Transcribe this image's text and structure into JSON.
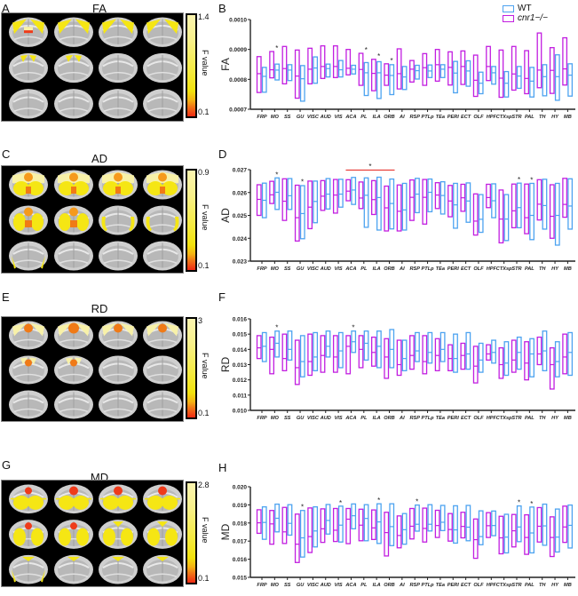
{
  "legend": {
    "wt_label": "WT",
    "ko_label": "cnr1−/−",
    "wt_color": "#4da3f0",
    "ko_color": "#c21ee0"
  },
  "brain_panels": [
    {
      "letter": "A",
      "title": "FA",
      "cbar_max": "1.4",
      "cbar_min": "0.1",
      "cbar_label": "F value"
    },
    {
      "letter": "C",
      "title": "AD",
      "cbar_max": "0.9",
      "cbar_min": "0.1",
      "cbar_label": "F value"
    },
    {
      "letter": "E",
      "title": "RD",
      "cbar_max": "3",
      "cbar_min": "0.1",
      "cbar_label": "F value"
    },
    {
      "letter": "G",
      "title": "MD",
      "cbar_max": "2.8",
      "cbar_min": "0.1",
      "cbar_label": "F value"
    }
  ],
  "chart_data": [
    {
      "panel": "B",
      "type": "floating-bar",
      "title": "",
      "xlabel": "",
      "ylabel": "FA",
      "ylim": [
        0.0007,
        0.001
      ],
      "yticks": [
        "0.0007",
        "0.0008",
        "0.0009",
        "0.0010"
      ],
      "categories": [
        "FRP",
        "MO",
        "SS",
        "GU",
        "VISC",
        "AUD",
        "VIS",
        "ACA",
        "PL",
        "ILA",
        "ORB",
        "AI",
        "RSP",
        "PTLp",
        "TEa",
        "PERI",
        "ECT",
        "OLF",
        "HPF",
        "CTXsp",
        "STR",
        "PAL",
        "TH",
        "HY",
        "MB"
      ],
      "series": [
        {
          "name": "cnr1-/-",
          "min": [
            0.000756,
            0.000805,
            0.000785,
            0.000737,
            0.000785,
            0.000803,
            0.000806,
            0.000815,
            0.00078,
            0.000762,
            0.00078,
            0.000768,
            0.000791,
            0.00078,
            0.000794,
            0.000781,
            0.000783,
            0.000743,
            0.000796,
            0.00074,
            0.000764,
            0.000752,
            0.000772,
            0.000753,
            0.000781
          ],
          "max": [
            0.000876,
            0.000893,
            0.00091,
            0.000898,
            0.000904,
            0.000912,
            0.000912,
            0.0009,
            0.000887,
            0.000867,
            0.000852,
            0.000902,
            0.000863,
            0.000886,
            0.0009,
            0.000892,
            0.000895,
            0.000881,
            0.00091,
            0.000898,
            0.00091,
            0.000896,
            0.000955,
            0.000906,
            0.000939
          ],
          "median": [
            0.000819,
            0.000832,
            0.000836,
            0.000811,
            0.000834,
            0.000843,
            0.000843,
            0.000837,
            0.000833,
            0.00082,
            0.000814,
            0.000819,
            0.000834,
            0.000839,
            0.000849,
            0.00084,
            0.000843,
            0.000797,
            0.000843,
            0.000804,
            0.000818,
            0.000803,
            0.000831,
            0.00083,
            0.000835
          ]
        },
        {
          "name": "WT",
          "min": [
            0.000757,
            0.000798,
            0.000796,
            0.000727,
            0.000787,
            0.000808,
            0.000808,
            0.000818,
            0.000746,
            0.000736,
            0.000749,
            0.000766,
            0.000801,
            0.000806,
            0.000806,
            0.000755,
            0.000777,
            0.000752,
            0.000784,
            0.000741,
            0.00077,
            0.000741,
            0.000745,
            0.00073,
            0.000744
          ],
          "max": [
            0.00084,
            0.000851,
            0.000849,
            0.000846,
            0.000875,
            0.000851,
            0.000863,
            0.000847,
            0.000856,
            0.000859,
            0.000849,
            0.000843,
            0.000847,
            0.000848,
            0.000849,
            0.00086,
            0.000862,
            0.000824,
            0.000843,
            0.000826,
            0.000843,
            0.00084,
            0.000849,
            0.000882,
            0.000852
          ],
          "median": [
            0.00081,
            0.000831,
            0.000831,
            0.000802,
            0.000838,
            0.000836,
            0.000832,
            0.000834,
            0.000822,
            0.000822,
            0.000813,
            0.000808,
            0.000829,
            0.000828,
            0.000834,
            0.000821,
            0.000828,
            0.000787,
            0.000822,
            0.000787,
            0.000811,
            0.000794,
            0.000809,
            0.000809,
            0.000814
          ]
        }
      ],
      "annotations": [
        {
          "category": "MO",
          "text": "*"
        },
        {
          "category": "PL",
          "text": "*"
        },
        {
          "category": "ILA",
          "text": "*"
        },
        {
          "category": "ORB",
          "text": "*"
        }
      ]
    },
    {
      "panel": "D",
      "type": "floating-bar",
      "title": "",
      "xlabel": "",
      "ylabel": "AD",
      "ylim": [
        0.023,
        0.027
      ],
      "yticks": [
        "0.023",
        "0.024",
        "0.025",
        "0.026",
        "0.027"
      ],
      "categories": [
        "FRP",
        "MO",
        "SS",
        "GU",
        "VISC",
        "AUD",
        "VIS",
        "ACA",
        "PL",
        "ILA",
        "ORB",
        "AI",
        "RSP",
        "PTLp",
        "TEa",
        "PERI",
        "ECT",
        "OLF",
        "HPF",
        "CTXsp",
        "STR",
        "PAL",
        "TH",
        "HY",
        "MB"
      ],
      "series": [
        {
          "name": "cnr1-/-",
          "min": [
            0.025,
            0.02552,
            0.02478,
            0.02388,
            0.02442,
            0.02522,
            0.0251,
            0.02564,
            0.0253,
            0.02504,
            0.02432,
            0.02432,
            0.02478,
            0.02462,
            0.0253,
            0.02494,
            0.02518,
            0.02414,
            0.02534,
            0.0238,
            0.02446,
            0.0242,
            0.0248,
            0.024,
            0.02492
          ],
          "max": [
            0.02634,
            0.02649,
            0.0266,
            0.02632,
            0.0265,
            0.02652,
            0.02657,
            0.02656,
            0.02646,
            0.02652,
            0.02628,
            0.02633,
            0.02655,
            0.02657,
            0.02643,
            0.02631,
            0.02636,
            0.02594,
            0.02636,
            0.02611,
            0.02637,
            0.02637,
            0.02656,
            0.02634,
            0.02662
          ],
          "median": [
            0.0257,
            0.0259,
            0.02562,
            0.0249,
            0.02536,
            0.02584,
            0.02589,
            0.02606,
            0.02576,
            0.02569,
            0.02533,
            0.02518,
            0.02579,
            0.02579,
            0.02589,
            0.02563,
            0.02577,
            0.02475,
            0.02578,
            0.02484,
            0.0252,
            0.0249,
            0.02549,
            0.02496,
            0.02548
          ]
        },
        {
          "name": "WT",
          "min": [
            0.0249,
            0.02526,
            0.02526,
            0.02398,
            0.02468,
            0.02528,
            0.02536,
            0.02548,
            0.02448,
            0.02436,
            0.02441,
            0.02436,
            0.02512,
            0.02516,
            0.02506,
            0.02444,
            0.0247,
            0.02426,
            0.0249,
            0.0239,
            0.02446,
            0.02394,
            0.0244,
            0.0237,
            0.0244
          ],
          "max": [
            0.02641,
            0.02664,
            0.02661,
            0.0263,
            0.0265,
            0.02661,
            0.02658,
            0.02666,
            0.02664,
            0.02667,
            0.02659,
            0.0264,
            0.02662,
            0.02659,
            0.02647,
            0.0264,
            0.02642,
            0.02591,
            0.02638,
            0.02591,
            0.02641,
            0.0264,
            0.02658,
            0.0264,
            0.0266
          ],
          "median": [
            0.02566,
            0.02601,
            0.02586,
            0.02508,
            0.02561,
            0.02593,
            0.02593,
            0.02611,
            0.02588,
            0.02578,
            0.02552,
            0.02524,
            0.02593,
            0.02601,
            0.02587,
            0.02546,
            0.02563,
            0.02483,
            0.02564,
            0.02484,
            0.02534,
            0.025,
            0.02543,
            0.025,
            0.02541
          ]
        }
      ],
      "annotations": [
        {
          "category": "MO",
          "text": "*"
        },
        {
          "category": "GU",
          "text": "*"
        },
        {
          "category": "ACA-ORB",
          "text": "*",
          "bracket": true,
          "bracket_color": "#e8413c"
        },
        {
          "category": "STR",
          "text": "*"
        },
        {
          "category": "PAL",
          "text": "*"
        }
      ]
    },
    {
      "panel": "F",
      "type": "floating-bar",
      "title": "",
      "xlabel": "",
      "ylabel": "RD",
      "ylim": [
        0.01,
        0.016
      ],
      "yticks": [
        "0.010",
        "0.011",
        "0.012",
        "0.013",
        "0.014",
        "0.015",
        "0.016"
      ],
      "categories": [
        "FRP",
        "MO",
        "SS",
        "GU",
        "VISC",
        "AUD",
        "VIS",
        "ACA",
        "PL",
        "ILA",
        "ORB",
        "AI",
        "RSP",
        "PTLp",
        "TEa",
        "PERI",
        "ECT",
        "OLF",
        "HPF",
        "CTXsp",
        "STR",
        "PAL",
        "TH",
        "HY",
        "MB"
      ],
      "series": [
        {
          "name": "cnr1-/-",
          "min": [
            0.0134,
            0.0124,
            0.0126,
            0.0117,
            0.0123,
            0.0125,
            0.0125,
            0.0124,
            0.0128,
            0.0129,
            0.0121,
            0.0123,
            0.0127,
            0.0124,
            0.0126,
            0.0126,
            0.0127,
            0.0118,
            0.0133,
            0.0121,
            0.0125,
            0.012,
            0.013,
            0.0114,
            0.0124
          ],
          "max": [
            0.0149,
            0.0148,
            0.015,
            0.0146,
            0.015,
            0.0149,
            0.0149,
            0.0149,
            0.0149,
            0.0148,
            0.0147,
            0.0146,
            0.0149,
            0.0149,
            0.0147,
            0.0143,
            0.0144,
            0.0142,
            0.0143,
            0.0141,
            0.0146,
            0.0145,
            0.0148,
            0.0141,
            0.015
          ],
          "median": [
            0.0141,
            0.014,
            0.0134,
            0.0128,
            0.0132,
            0.0136,
            0.0135,
            0.0142,
            0.014,
            0.0138,
            0.0135,
            0.013,
            0.0136,
            0.0132,
            0.0136,
            0.0134,
            0.0136,
            0.0129,
            0.0137,
            0.013,
            0.0133,
            0.0131,
            0.0137,
            0.013,
            0.0135
          ]
        },
        {
          "name": "WT",
          "min": [
            0.0132,
            0.0135,
            0.0133,
            0.0122,
            0.0126,
            0.0135,
            0.0128,
            0.0138,
            0.0133,
            0.0128,
            0.0128,
            0.0126,
            0.0132,
            0.0131,
            0.0132,
            0.0125,
            0.0127,
            0.0125,
            0.0131,
            0.0123,
            0.0127,
            0.0122,
            0.0126,
            0.0122,
            0.0123
          ],
          "max": [
            0.0151,
            0.0152,
            0.0152,
            0.0149,
            0.0151,
            0.0152,
            0.0151,
            0.0152,
            0.0152,
            0.0152,
            0.0153,
            0.0146,
            0.0151,
            0.0151,
            0.0151,
            0.015,
            0.0151,
            0.0144,
            0.0146,
            0.0145,
            0.0148,
            0.0147,
            0.0152,
            0.0145,
            0.0151
          ],
          "median": [
            0.0142,
            0.0144,
            0.014,
            0.0132,
            0.0135,
            0.0142,
            0.0139,
            0.0145,
            0.0144,
            0.0142,
            0.014,
            0.0134,
            0.0139,
            0.0138,
            0.014,
            0.0134,
            0.0137,
            0.0133,
            0.0138,
            0.0131,
            0.0138,
            0.0137,
            0.0139,
            0.0132,
            0.0138
          ]
        }
      ],
      "annotations": [
        {
          "category": "MO",
          "text": "*"
        },
        {
          "category": "ACA",
          "text": "*"
        }
      ]
    },
    {
      "panel": "H",
      "type": "floating-bar",
      "title": "",
      "xlabel": "",
      "ylabel": "MD",
      "ylim": [
        0.015,
        0.02
      ],
      "yticks": [
        "0.015",
        "0.016",
        "0.017",
        "0.018",
        "0.019",
        "0.020"
      ],
      "categories": [
        "FRP",
        "MO",
        "SS",
        "GU",
        "VISC",
        "AUD",
        "VIS",
        "ACA",
        "PL",
        "ILA",
        "ORB",
        "AI",
        "RSP",
        "PTLp",
        "TEa",
        "PERI",
        "ECT",
        "OLF",
        "HPF",
        "CTXsp",
        "STR",
        "PAL",
        "TH",
        "HY",
        "MB"
      ],
      "series": [
        {
          "name": "cnr1-/-",
          "min": [
            0.01743,
            0.01683,
            0.01687,
            0.01582,
            0.01637,
            0.01693,
            0.01698,
            0.01686,
            0.01702,
            0.01709,
            0.01618,
            0.01663,
            0.01712,
            0.01695,
            0.0172,
            0.017,
            0.01718,
            0.01605,
            0.0172,
            0.0163,
            0.01668,
            0.01627,
            0.01695,
            0.01615,
            0.01693
          ],
          "max": [
            0.01873,
            0.01869,
            0.01886,
            0.01849,
            0.01883,
            0.01878,
            0.0188,
            0.0188,
            0.01876,
            0.01872,
            0.01859,
            0.01839,
            0.0188,
            0.01882,
            0.0187,
            0.01852,
            0.01859,
            0.01822,
            0.01857,
            0.01837,
            0.01847,
            0.01845,
            0.01885,
            0.01834,
            0.01893
          ],
          "median": [
            0.01801,
            0.01795,
            0.01751,
            0.01683,
            0.01725,
            0.01768,
            0.0176,
            0.01821,
            0.01788,
            0.01773,
            0.01747,
            0.01731,
            0.01782,
            0.0177,
            0.01786,
            0.01764,
            0.01781,
            0.01708,
            0.01785,
            0.01718,
            0.01757,
            0.0172,
            0.01782,
            0.0172,
            0.01778
          ]
        },
        {
          "name": "WT",
          "min": [
            0.0171,
            0.01751,
            0.01733,
            0.01612,
            0.01668,
            0.01739,
            0.01695,
            0.01768,
            0.01702,
            0.01687,
            0.01675,
            0.01683,
            0.01755,
            0.01756,
            0.01758,
            0.01689,
            0.01702,
            0.0168,
            0.0173,
            0.01635,
            0.01697,
            0.01635,
            0.01677,
            0.0164,
            0.01662
          ],
          "max": [
            0.01889,
            0.01904,
            0.01901,
            0.01869,
            0.01889,
            0.01902,
            0.01893,
            0.01905,
            0.01901,
            0.01906,
            0.01906,
            0.01852,
            0.01899,
            0.01901,
            0.01897,
            0.01895,
            0.01897,
            0.01867,
            0.01866,
            0.01848,
            0.01894,
            0.01888,
            0.01904,
            0.01877,
            0.01899
          ],
          "median": [
            0.01803,
            0.01826,
            0.01798,
            0.01718,
            0.01756,
            0.01814,
            0.01788,
            0.0184,
            0.01825,
            0.01806,
            0.0178,
            0.01763,
            0.01793,
            0.01793,
            0.01804,
            0.01762,
            0.01777,
            0.01725,
            0.01786,
            0.01722,
            0.01778,
            0.01745,
            0.01784,
            0.01722,
            0.01787
          ]
        }
      ],
      "annotations": [
        {
          "category": "GU",
          "text": "*"
        },
        {
          "category": "VIS",
          "text": "*"
        },
        {
          "category": "ILA",
          "text": "*"
        },
        {
          "category": "RSP",
          "text": "*"
        },
        {
          "category": "STR",
          "text": "*"
        },
        {
          "category": "PAL",
          "text": "*"
        }
      ]
    }
  ]
}
